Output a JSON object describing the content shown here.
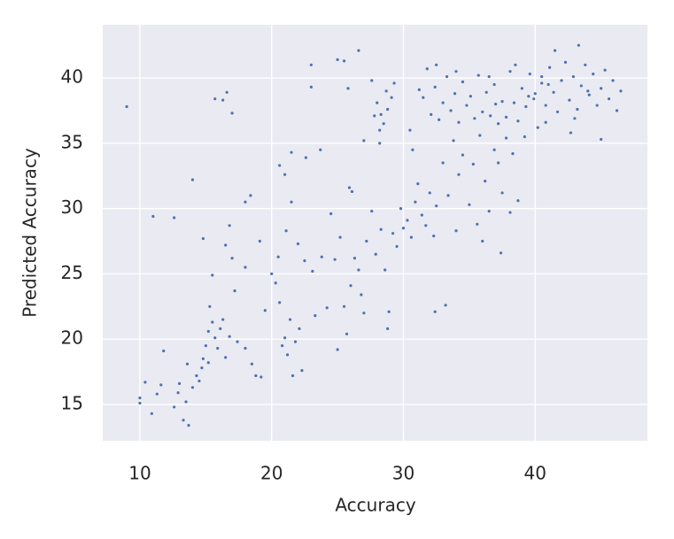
{
  "chart_data": {
    "type": "scatter",
    "xlabel": "Accuracy",
    "ylabel": "Predicted Accuracy",
    "color": "#4c72b0",
    "background": "#eaeaf2",
    "grid": true,
    "xlim": [
      7.18,
      48.52
    ],
    "ylim": [
      12.22,
      44.07
    ],
    "xticks": [
      10,
      20,
      30,
      40
    ],
    "yticks": [
      15,
      20,
      25,
      30,
      35,
      40
    ],
    "x": [
      9,
      11,
      12.6,
      14,
      15.7,
      16.3,
      16.6,
      17,
      23,
      25,
      25.5,
      26.6,
      23,
      25.8,
      32.4,
      33.2,
      37.4,
      10,
      10,
      10.4,
      10.9,
      11.3,
      11.6,
      11.8,
      12.6,
      12.9,
      13,
      13.3,
      13.5,
      13.7,
      13.6,
      14,
      14.3,
      14.5,
      14.8,
      15,
      15.2,
      15.3,
      15.5,
      15.7,
      15.9,
      16.1,
      16.3,
      16.5,
      15.2,
      14.7,
      16.8,
      17.4,
      18,
      18.5,
      18.8,
      19.2,
      17.2,
      17,
      16.5,
      16.8,
      15.5,
      14.8,
      18,
      18,
      18.4,
      19.1,
      19.5,
      20,
      20.3,
      20.6,
      20.8,
      21,
      21.2,
      21.4,
      21.8,
      22.1,
      21.6,
      22.3,
      20.5,
      21.1,
      20.6,
      21,
      21.5,
      22,
      22.5,
      23.1,
      23.3,
      23.8,
      24.2,
      24.5,
      24.8,
      25.2,
      25.5,
      25.7,
      25,
      26,
      26.3,
      26.6,
      26.8,
      27.2,
      27,
      27.6,
      27.9,
      28.3,
      28.6,
      28.9,
      28.8,
      29.2,
      29.5,
      29.8,
      30,
      30.3,
      30.6,
      30.9,
      31.1,
      31.4,
      31.7,
      32,
      32.3,
      32.5,
      25.9,
      26.1,
      23.7,
      21.5,
      22.6,
      27,
      28.2,
      30.5,
      30.7,
      27.6,
      28,
      28.3,
      28.5,
      28.8,
      29.1,
      28.2,
      27.8,
      29.3,
      28.7,
      33,
      33.4,
      33.8,
      34.2,
      34.5,
      35,
      35.3,
      35.8,
      36.2,
      36.5,
      36.9,
      37.2,
      37.5,
      37.8,
      38.1,
      38.3,
      38.7,
      34,
      35.6,
      36,
      31.5,
      31.8,
      32.1,
      32.4,
      32.7,
      33,
      33.3,
      33.6,
      33.9,
      34.2,
      34.5,
      34.8,
      35.1,
      35.4,
      35.7,
      36,
      36.3,
      36.6,
      36.9,
      37.2,
      37.5,
      37.8,
      38.1,
      38.4,
      38.7,
      39,
      39.3,
      39.6,
      39.9,
      40.2,
      40.5,
      40.8,
      41.1,
      41.4,
      41.7,
      42,
      42.3,
      42.6,
      42.9,
      43.2,
      43.5,
      43.8,
      44.1,
      44.4,
      44.7,
      45,
      45.3,
      45.6,
      45.9,
      46.2,
      46.5,
      43.3,
      41.5,
      40.8,
      39.2,
      42.7,
      45,
      38.5,
      40,
      41,
      39.5,
      40.5,
      43,
      44,
      37,
      36.5,
      34,
      32.5,
      31.2
    ],
    "values": [
      37.8,
      29.4,
      29.3,
      32.2,
      38.4,
      38.3,
      38.9,
      37.3,
      41,
      41.4,
      41.3,
      42.1,
      39.3,
      39.2,
      22.1,
      22.6,
      26.6,
      15.1,
      15.5,
      16.7,
      14.3,
      15.8,
      16.5,
      19.1,
      14.8,
      15.9,
      16.6,
      13.8,
      15.2,
      13.4,
      18.1,
      16.3,
      17.2,
      16.8,
      18.5,
      19.5,
      20.6,
      22.5,
      21.3,
      20.1,
      19.3,
      20.8,
      21.5,
      18.6,
      18.2,
      17.8,
      20.2,
      19.8,
      19.3,
      18.1,
      17.2,
      17.1,
      23.7,
      26.2,
      27.2,
      28.7,
      24.9,
      27.7,
      25.5,
      30.5,
      31,
      27.5,
      22.2,
      25,
      24.3,
      22.8,
      19.5,
      20.1,
      18.8,
      21.5,
      19.8,
      20.8,
      17.2,
      17.6,
      26.3,
      28.3,
      33.3,
      32.6,
      30.5,
      27.3,
      26,
      25.2,
      21.8,
      26.3,
      22.4,
      29.6,
      26.1,
      27.8,
      22.5,
      20.4,
      19.2,
      24.1,
      26.2,
      25.3,
      23.4,
      27.5,
      22,
      29.8,
      26.5,
      28.4,
      25.3,
      22.1,
      20.8,
      28.1,
      27.1,
      30,
      28.5,
      29.1,
      27.8,
      30.5,
      31.9,
      29.5,
      28.7,
      31.2,
      27.9,
      30.2,
      31.6,
      31.3,
      34.5,
      34.3,
      33.9,
      35.2,
      35,
      36,
      34.5,
      39.8,
      38.1,
      37.2,
      36.5,
      37.6,
      38.5,
      36,
      37.1,
      39.6,
      39,
      33.5,
      31,
      35.2,
      32.6,
      34.1,
      30.3,
      33.4,
      35.6,
      32.1,
      29.8,
      34.5,
      33.5,
      31.2,
      35.4,
      29.7,
      34.2,
      30.6,
      28.3,
      28.8,
      27.5,
      38.5,
      40.7,
      37.2,
      39.3,
      36.8,
      38.1,
      40.1,
      37.5,
      38.8,
      36.6,
      39.7,
      37.9,
      38.6,
      36.9,
      40.2,
      37.4,
      38.9,
      37.1,
      39.5,
      36.5,
      38.2,
      37,
      40.5,
      38.1,
      36.7,
      39.2,
      37.8,
      40.3,
      38.4,
      36.2,
      39.6,
      37.9,
      40.8,
      38.9,
      37.4,
      39.8,
      41.2,
      38.3,
      40.1,
      37.6,
      39.4,
      41,
      38.7,
      40.3,
      37.9,
      39.2,
      40.6,
      38.4,
      39.8,
      37.5,
      39,
      42.5,
      42.1,
      36.6,
      35.5,
      35.8,
      35.3,
      41,
      38.8,
      39.5,
      38.6,
      40.1,
      36.9,
      39,
      38,
      40.1,
      40.5,
      41,
      39.1
    ]
  }
}
